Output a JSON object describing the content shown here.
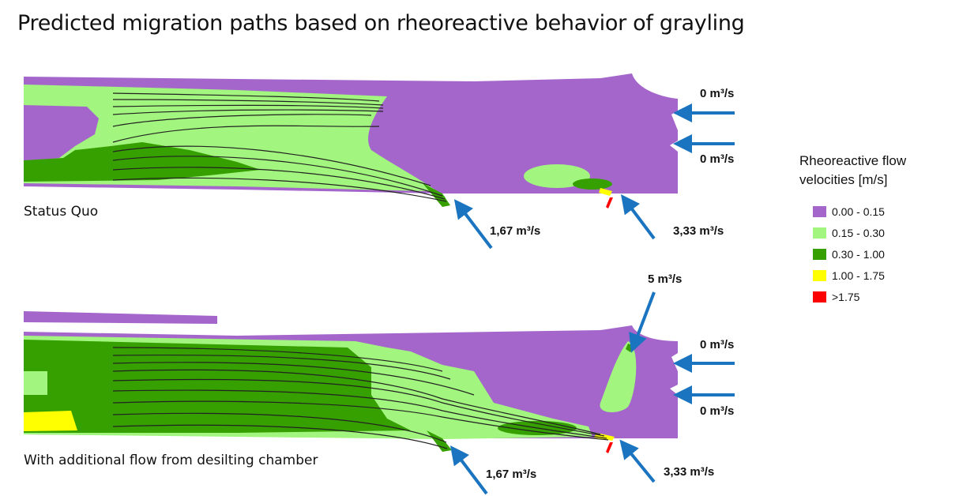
{
  "title": "Predicted migration paths based on rheoreactive behavior of grayling",
  "panels": [
    {
      "label": "Status Quo",
      "inflows": {
        "upper_right": "0 m³/s",
        "lower_right": "0 m³/s",
        "side_left": "1,67 m³/s",
        "side_right": "3,33 m³/s"
      }
    },
    {
      "label": "With additional flow from desilting chamber",
      "inflows": {
        "upper_right": "0 m³/s",
        "lower_right": "0 m³/s",
        "side_left": "1,67 m³/s",
        "side_right": "3,33 m³/s",
        "desilting": "5 m³/s"
      }
    }
  ],
  "legend": {
    "title": "Rheoreactive flow velocities [m/s]",
    "items": [
      {
        "label": "0.00 - 0.15",
        "color": "#a566cc"
      },
      {
        "label": "0.15 - 0.30",
        "color": "#a2f57e"
      },
      {
        "label": "0.30 - 1.00",
        "color": "#36a000"
      },
      {
        "label": "1.00 - 1.75",
        "color": "#ffff00"
      },
      {
        "label": ">1.75",
        "color": "#ff0000"
      }
    ]
  },
  "arrow_color": "#1a74c0"
}
